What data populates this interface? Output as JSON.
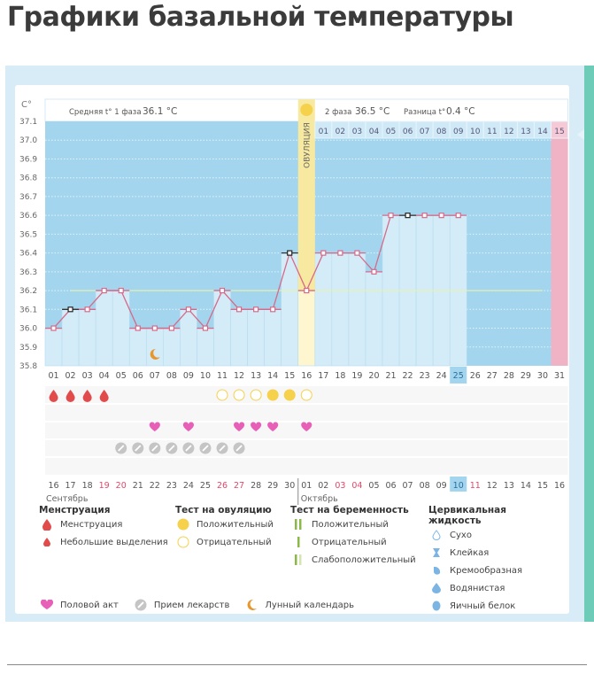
{
  "page_title": "Графики базальной температуры",
  "chart_data": {
    "type": "line",
    "title": "Графики базальной температуры",
    "ylabel": "C°",
    "ylim": [
      35.8,
      37.1
    ],
    "yticks": [
      "37.1",
      "37.0",
      "36.9",
      "36.8",
      "36.7",
      "36.6",
      "36.5",
      "36.4",
      "36.3",
      "36.2",
      "36.1",
      "36.0",
      "35.9",
      "35.8"
    ],
    "x": [
      "01",
      "02",
      "03",
      "04",
      "05",
      "06",
      "07",
      "08",
      "09",
      "10",
      "11",
      "12",
      "13",
      "14",
      "15",
      "16",
      "17",
      "18",
      "19",
      "20",
      "21",
      "22",
      "23",
      "24",
      "25",
      "26",
      "27",
      "28",
      "29",
      "30",
      "31"
    ],
    "series": [
      {
        "name": "Базальная температура",
        "values": [
          36.0,
          36.1,
          36.1,
          36.2,
          36.2,
          36.0,
          36.0,
          36.0,
          36.1,
          36.0,
          36.2,
          36.1,
          36.1,
          36.1,
          36.4,
          36.2,
          36.4,
          36.4,
          36.4,
          36.3,
          36.6,
          36.6,
          36.6,
          36.6,
          36.6,
          null,
          null,
          null,
          null,
          null,
          null
        ]
      }
    ],
    "highlighted_points": [
      2,
      15,
      22
    ],
    "coverline": 36.2,
    "ovulation_day": 16,
    "ovulation_label": "ОВУЛЯЦИЯ",
    "today_day": 25,
    "expected_period_day": 31,
    "phase1": {
      "label": "Средняя t° 1 фаза",
      "value": "36.1 °C"
    },
    "phase2": {
      "label": "2 фаза",
      "value": "36.5 °C"
    },
    "difference": {
      "label": "Разница t°",
      "value": "0.4 °C"
    },
    "phase2_days": [
      "01",
      "02",
      "03",
      "04",
      "05",
      "06",
      "07",
      "08",
      "09",
      "10",
      "11",
      "12",
      "13",
      "14",
      "15"
    ],
    "phase2_highlight_day": "15",
    "moon_day": 7,
    "menstruation_days": [
      1,
      2,
      3,
      4
    ],
    "ovulation_test_negative_days": [
      11,
      12,
      13,
      16
    ],
    "ovulation_test_positive_days": [
      14,
      15
    ],
    "intercourse_days": [
      7,
      9,
      12,
      13,
      14,
      16
    ],
    "medication_days": [
      5,
      6,
      7,
      8,
      9,
      10,
      11,
      12
    ],
    "calendar_dates": [
      {
        "d": "16",
        "red": false
      },
      {
        "d": "17",
        "red": false
      },
      {
        "d": "18",
        "red": false
      },
      {
        "d": "19",
        "red": true
      },
      {
        "d": "20",
        "red": true
      },
      {
        "d": "21",
        "red": false
      },
      {
        "d": "22",
        "red": false
      },
      {
        "d": "23",
        "red": false
      },
      {
        "d": "24",
        "red": false
      },
      {
        "d": "25",
        "red": false
      },
      {
        "d": "26",
        "red": true
      },
      {
        "d": "27",
        "red": true
      },
      {
        "d": "28",
        "red": false
      },
      {
        "d": "29",
        "red": false
      },
      {
        "d": "30",
        "red": false
      },
      {
        "d": "01",
        "red": false
      },
      {
        "d": "02",
        "red": false
      },
      {
        "d": "03",
        "red": true
      },
      {
        "d": "04",
        "red": true
      },
      {
        "d": "05",
        "red": false
      },
      {
        "d": "06",
        "red": false
      },
      {
        "d": "07",
        "red": false
      },
      {
        "d": "08",
        "red": false
      },
      {
        "d": "09",
        "red": false
      },
      {
        "d": "10",
        "red": false,
        "today": true
      },
      {
        "d": "11",
        "red": true
      },
      {
        "d": "12",
        "red": false
      },
      {
        "d": "13",
        "red": false
      },
      {
        "d": "14",
        "red": false
      },
      {
        "d": "15",
        "red": false
      },
      {
        "d": "16",
        "red": false
      }
    ],
    "month1": "Сентябрь",
    "month2": "Октябрь"
  },
  "legend": {
    "menstruation": {
      "title": "Менструация",
      "items": [
        "Менструация",
        "Небольшие выделения"
      ]
    },
    "ovulation_test": {
      "title": "Тест на овуляцию",
      "items": [
        "Положительный",
        "Отрицательный"
      ]
    },
    "pregnancy_test": {
      "title": "Тест на беременность",
      "items": [
        "Положительный",
        "Отрицательный",
        "Слабоположительный"
      ]
    },
    "cervical": {
      "title": "Цервикальная жидкость",
      "items": [
        "Сухо",
        "Клейкая",
        "Кремообразная",
        "Водянистая",
        "Яичный белок"
      ]
    },
    "other": [
      "Половой акт",
      "Прием лекарств",
      "Лунный календарь"
    ]
  },
  "colors": {
    "plot_bg": "#a3d6ee",
    "bar": "#d4ecf8",
    "line": "#d66a8a",
    "ovulation": "#f8e9a0",
    "period": "#f0b3c6",
    "drop": "#e24b4b",
    "test_pos": "#f5d14c",
    "heart": "#e85fb8",
    "pill": "#c5c5c5",
    "moon": "#e8972f",
    "today": "#a3d6ee"
  }
}
